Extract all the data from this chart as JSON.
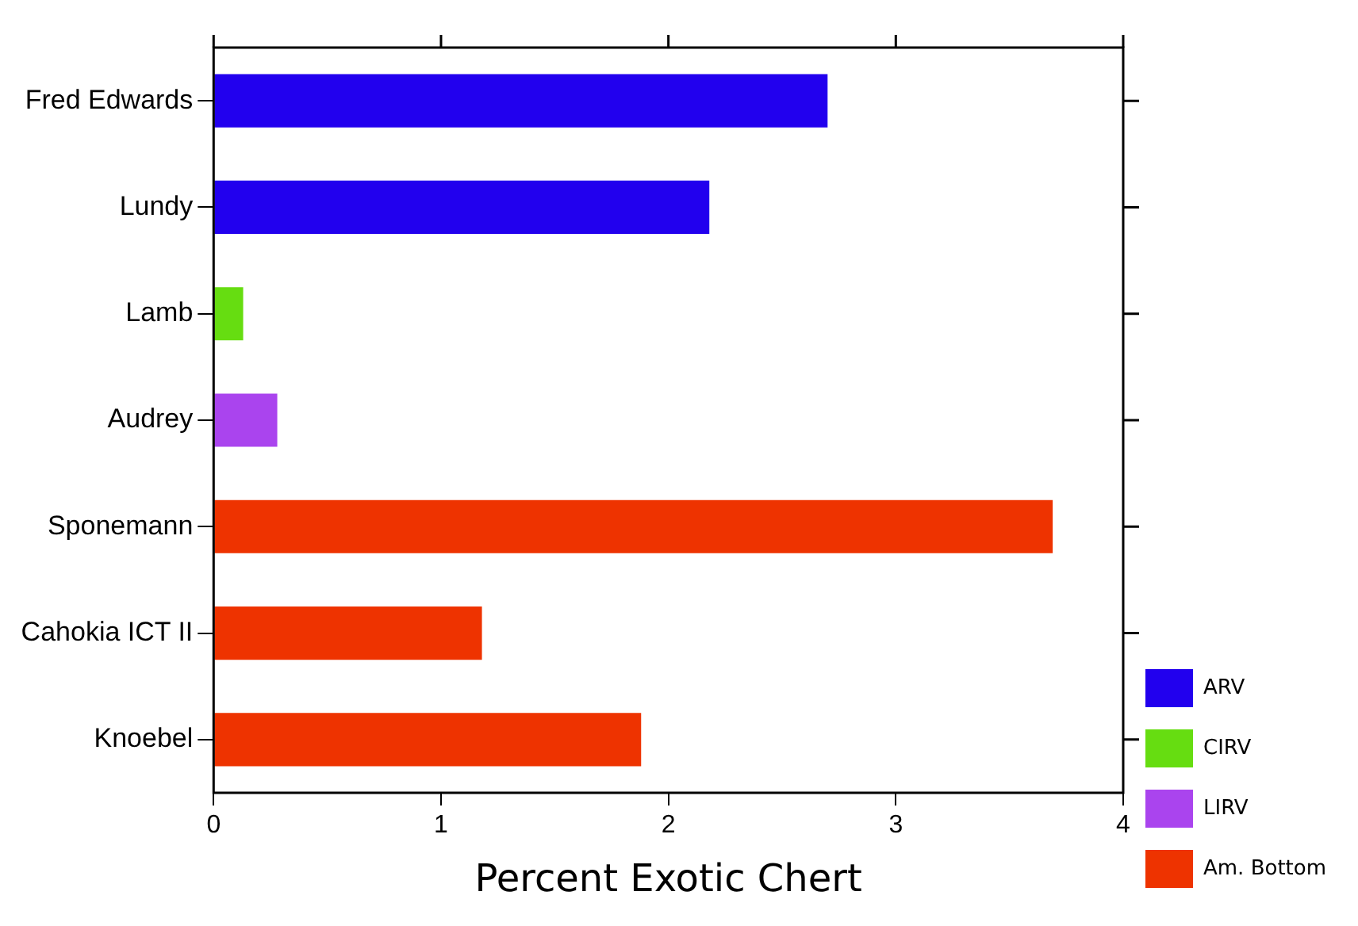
{
  "chart_data": {
    "type": "bar",
    "orientation": "horizontal",
    "stacked": true,
    "categories": [
      "Fred Edwards",
      "Lundy",
      "Lamb",
      "Audrey",
      "Sponemann",
      "Cahokia ICT II",
      "Knoebel"
    ],
    "xlabel": "Percent Exotic Chert",
    "xlim": [
      0,
      4
    ],
    "xticks": [
      0,
      1,
      2,
      3,
      4
    ],
    "grid": false,
    "legend": "bottom right",
    "series": [
      {
        "name": "ARV",
        "color": "#2200ee",
        "values": [
          2.7,
          2.18,
          null,
          null,
          null,
          null,
          null
        ]
      },
      {
        "name": "CIRV",
        "color": "#66dd11",
        "values": [
          null,
          null,
          0.13,
          null,
          null,
          null,
          null
        ]
      },
      {
        "name": "LIRV",
        "color": "#aa44ee",
        "values": [
          null,
          null,
          null,
          0.28,
          null,
          null,
          null
        ]
      },
      {
        "name": "Am. Bottom",
        "color": "#ee3300",
        "values": [
          null,
          null,
          null,
          null,
          3.69,
          1.18,
          1.88
        ]
      }
    ]
  }
}
